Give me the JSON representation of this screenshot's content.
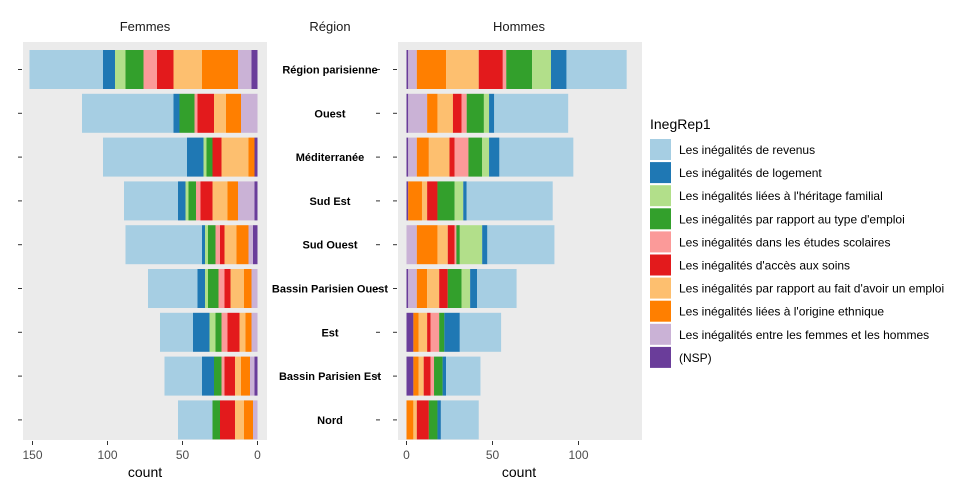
{
  "chart_data": {
    "type": "bar",
    "orientation": "horizontal-stacked",
    "panel_titles": {
      "left": "Femmes",
      "center": "Région",
      "right": "Hommes"
    },
    "xlabel": "count",
    "left_xlim": [
      0,
      160
    ],
    "right_xlim": [
      0,
      135
    ],
    "left_ticks": [
      "150",
      "100",
      "50",
      "0"
    ],
    "right_ticks": [
      "0",
      "50",
      "100"
    ],
    "grid": false,
    "legend_position": "right",
    "legend_title": "InegRep1",
    "categories": [
      "Région parisienne",
      "Ouest",
      "Méditerranée",
      "Sud Est",
      "Sud Ouest",
      "Bassin Parisien Ouest",
      "Est",
      "Bassin Parisien Est",
      "Nord"
    ],
    "series": [
      {
        "name": "(NSP)",
        "color": "#6a3d9a",
        "femmes": [
          4,
          0,
          2,
          2,
          3,
          0,
          0,
          2,
          0
        ],
        "hommes": [
          1,
          1,
          1,
          1,
          0,
          1,
          4,
          4,
          0
        ]
      },
      {
        "name": "Les inégalités entre les femmes et les hommes",
        "color": "#cab2d6",
        "femmes": [
          9,
          11,
          0,
          11,
          3,
          4,
          4,
          3,
          3
        ],
        "hommes": [
          5,
          11,
          5,
          0,
          6,
          5,
          0,
          0,
          0
        ]
      },
      {
        "name": "Les inégalités liées à l'origine ethnique",
        "color": "#ff7f00",
        "femmes": [
          24,
          10,
          4,
          7,
          8,
          5,
          4,
          6,
          6
        ],
        "hommes": [
          17,
          6,
          7,
          8,
          12,
          6,
          3,
          3,
          4
        ]
      },
      {
        "name": "Les inégalités par rapport au fait d'avoir un emploi",
        "color": "#fdbf6f",
        "femmes": [
          19,
          8,
          18,
          10,
          8,
          9,
          4,
          4,
          6
        ],
        "hommes": [
          19,
          9,
          12,
          3,
          6,
          7,
          5,
          3,
          2
        ]
      },
      {
        "name": "Les inégalités d'accès aux soins",
        "color": "#e31a1c",
        "femmes": [
          11,
          11,
          6,
          8,
          3,
          4,
          8,
          7,
          10
        ],
        "hommes": [
          14,
          5,
          3,
          6,
          4,
          5,
          2,
          4,
          7
        ]
      },
      {
        "name": "Les inégalités dans les études scolaires",
        "color": "#fb9a99",
        "femmes": [
          9,
          2,
          0,
          3,
          3,
          4,
          4,
          2,
          0
        ],
        "hommes": [
          2,
          3,
          8,
          0,
          1,
          0,
          5,
          2,
          0
        ]
      },
      {
        "name": "Les inégalités par rapport au type d'emploi",
        "color": "#33a02c",
        "femmes": [
          12,
          10,
          4,
          5,
          5,
          7,
          4,
          5,
          5
        ],
        "hommes": [
          15,
          10,
          8,
          10,
          2,
          8,
          3,
          5,
          5
        ]
      },
      {
        "name": "Les inégalités liées à l'héritage familial",
        "color": "#b2df8a",
        "femmes": [
          7,
          0,
          2,
          2,
          2,
          2,
          4,
          0,
          0
        ],
        "hommes": [
          11,
          3,
          4,
          5,
          13,
          5,
          0,
          0,
          0
        ]
      },
      {
        "name": "Les inégalités de logement",
        "color": "#1f78b4",
        "femmes": [
          8,
          4,
          11,
          5,
          2,
          5,
          11,
          8,
          0
        ],
        "hommes": [
          9,
          3,
          6,
          2,
          3,
          4,
          9,
          2,
          2
        ]
      },
      {
        "name": "Les inégalités de revenus",
        "color": "#a6cee3",
        "femmes": [
          49,
          61,
          56,
          36,
          51,
          33,
          22,
          25,
          23
        ],
        "hommes": [
          35,
          43,
          43,
          50,
          39,
          23,
          24,
          20,
          22
        ]
      }
    ]
  }
}
